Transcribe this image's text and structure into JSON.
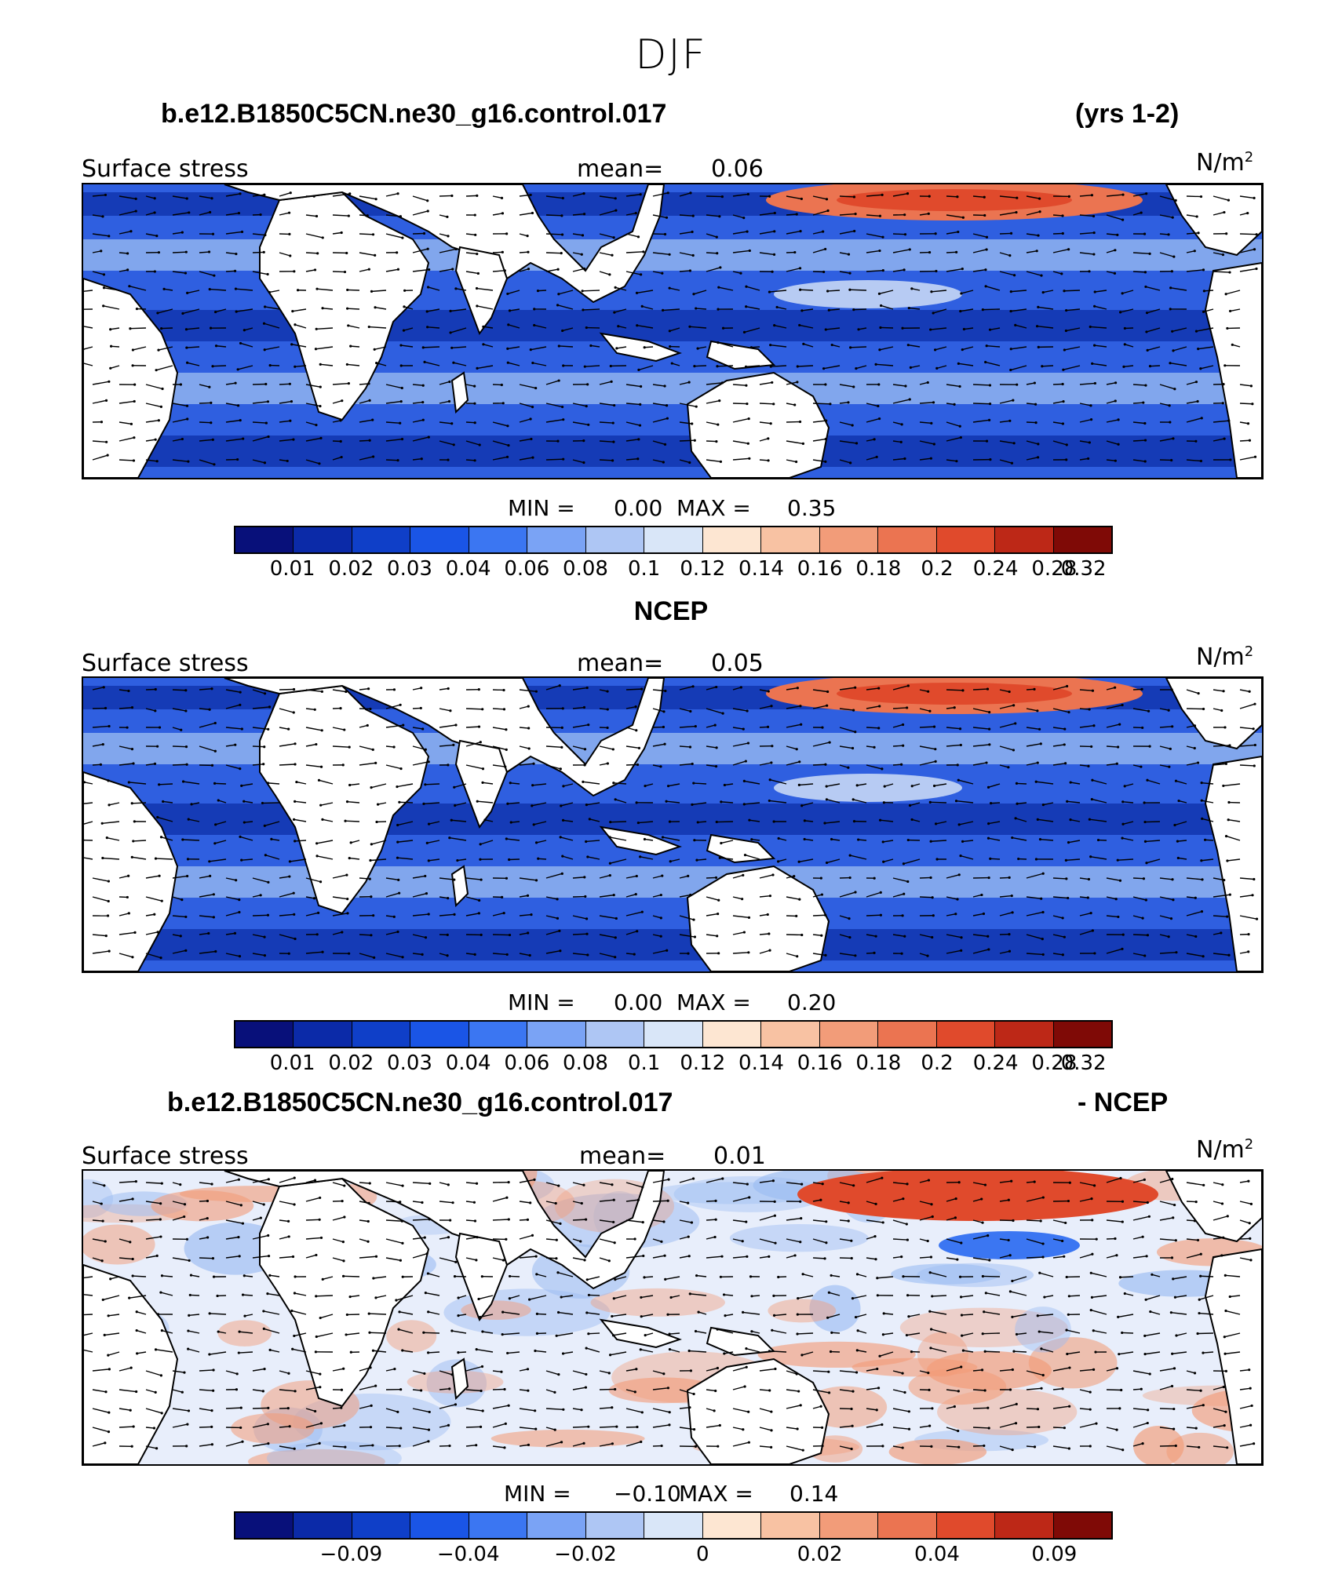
{
  "title": "DJF",
  "panels": [
    {
      "title_left": "b.e12.B1850C5CN.ne30_g16.control.017",
      "title_right": "(yrs 1-2)",
      "variable": "Surface stress",
      "mean_label": "mean=",
      "mean_value": "0.06",
      "units": "N/m",
      "units_sup": "2",
      "min_label": "MIN =",
      "min_value": "0.00",
      "max_label": "MAX =",
      "max_value": "0.35",
      "colorbar_labels": [
        "0.01",
        "0.02",
        "0.03",
        "0.04",
        "0.06",
        "0.08",
        "0.1",
        "0.12",
        "0.14",
        "0.16",
        "0.18",
        "0.2",
        "0.24",
        "0.28",
        "0.32"
      ],
      "scheme": "abs"
    },
    {
      "title_left": "",
      "title_center": "NCEP",
      "title_right": "",
      "variable": "Surface stress",
      "mean_label": "mean=",
      "mean_value": "0.05",
      "units": "N/m",
      "units_sup": "2",
      "min_label": "MIN =",
      "min_value": "0.00",
      "max_label": "MAX =",
      "max_value": "0.20",
      "colorbar_labels": [
        "0.01",
        "0.02",
        "0.03",
        "0.04",
        "0.06",
        "0.08",
        "0.1",
        "0.12",
        "0.14",
        "0.16",
        "0.18",
        "0.2",
        "0.24",
        "0.28",
        "0.32"
      ],
      "scheme": "abs"
    },
    {
      "title_left": "b.e12.B1850C5CN.ne30_g16.control.017",
      "title_right": "- NCEP",
      "variable": "Surface stress",
      "mean_label": "mean=",
      "mean_value": "0.01",
      "units": "N/m",
      "units_sup": "2",
      "min_label": "MIN =",
      "min_value": "−0.10",
      "max_label": "MAX =",
      "max_value": "0.14",
      "colorbar_labels": [
        "−0.09",
        "−0.04",
        "−0.02",
        "0",
        "0.02",
        "0.04",
        "0.09"
      ],
      "scheme": "diff"
    }
  ],
  "colorbar_colors": [
    "#08107a",
    "#0b2aa8",
    "#0f3fc8",
    "#1a55e6",
    "#3b76f2",
    "#7aa3f5",
    "#aec6f4",
    "#d9e6f8",
    "#fde6d2",
    "#f8c2a3",
    "#f29c79",
    "#eb7451",
    "#e04a2c",
    "#bd2817",
    "#7f0a06"
  ],
  "map_colors": {
    "ocean_abs": "#2f5fe0",
    "ocean_abs_dark": "#0d2fa8",
    "ocean_abs_light": "#9dbdf2",
    "ocean_diff": "#e8eefb",
    "diff_warm": "#f29c79",
    "diff_cool": "#9dbdf2",
    "land": "#ffffff"
  }
}
